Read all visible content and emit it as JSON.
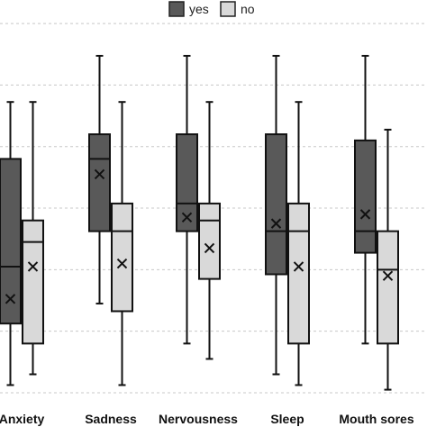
{
  "chart_data": {
    "type": "boxplot",
    "categories": [
      "Anxiety",
      "Sadness",
      "Nervousness",
      "Sleep",
      "Mouth sores"
    ],
    "series": [
      {
        "name": "yes",
        "color": "#595959",
        "boxes": [
          {
            "whisker_low": 0.5,
            "q1": 4.5,
            "median": 8.2,
            "q3": 15.2,
            "whisker_high": 18.9,
            "mean": 6.1
          },
          {
            "whisker_low": 5.8,
            "q1": 10.5,
            "median": 15.2,
            "q3": 16.8,
            "whisker_high": 21.9,
            "mean": 14.2
          },
          {
            "whisker_low": 3.2,
            "q1": 10.5,
            "median": 12.3,
            "q3": 16.8,
            "whisker_high": 21.9,
            "mean": 11.4
          },
          {
            "whisker_low": 1.2,
            "q1": 7.7,
            "median": 10.5,
            "q3": 16.8,
            "whisker_high": 21.9,
            "mean": 11.0
          },
          {
            "whisker_low": 3.2,
            "q1": 9.1,
            "median": 10.5,
            "q3": 16.4,
            "whisker_high": 21.9,
            "mean": 11.6
          }
        ]
      },
      {
        "name": "no",
        "color": "#d9d9d9",
        "boxes": [
          {
            "whisker_low": 1.2,
            "q1": 3.2,
            "median": 9.8,
            "q3": 11.2,
            "whisker_high": 18.9,
            "mean": 8.2
          },
          {
            "whisker_low": 0.5,
            "q1": 5.3,
            "median": 10.5,
            "q3": 12.3,
            "whisker_high": 18.9,
            "mean": 8.4
          },
          {
            "whisker_low": 2.2,
            "q1": 7.4,
            "median": 11.2,
            "q3": 12.3,
            "whisker_high": 18.9,
            "mean": 9.4
          },
          {
            "whisker_low": 0.5,
            "q1": 3.2,
            "median": 10.5,
            "q3": 12.3,
            "whisker_high": 18.9,
            "mean": 8.2
          },
          {
            "whisker_low": 0.2,
            "q1": 3.2,
            "median": 8.0,
            "q3": 10.5,
            "whisker_high": 17.1,
            "mean": 7.6
          }
        ]
      }
    ],
    "ylim": [
      0,
      25
    ],
    "gridlines": [
      0,
      4,
      8,
      12,
      16,
      20,
      24
    ],
    "grid": true,
    "legend_position": "top",
    "title": "",
    "xlabel": "",
    "ylabel": ""
  }
}
